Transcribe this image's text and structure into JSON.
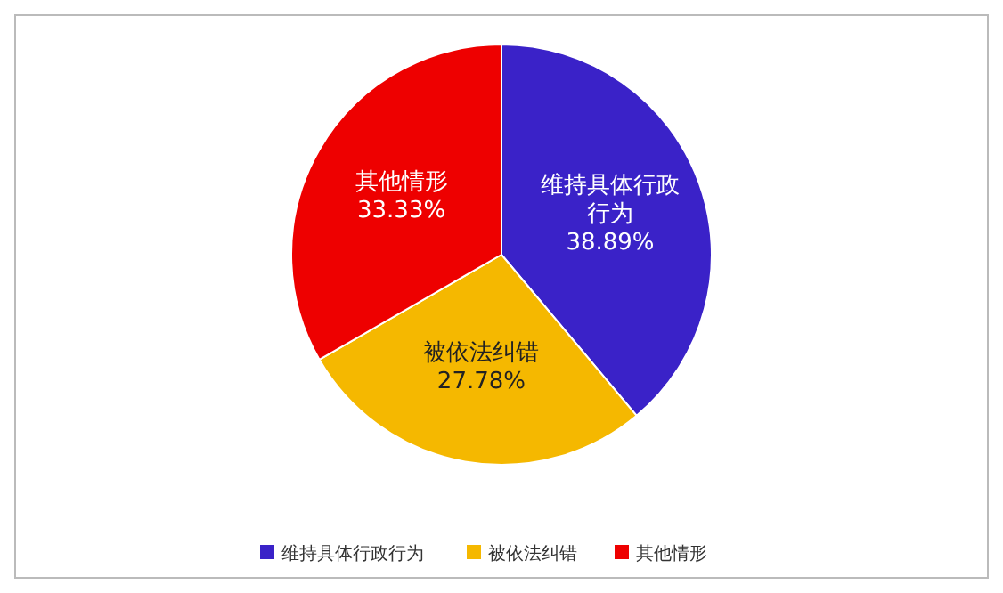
{
  "chart_data": {
    "type": "pie",
    "categories": [
      "维持具体行政行为",
      "被依法纠错",
      "其他情形"
    ],
    "values": [
      38.89,
      27.78,
      33.33
    ],
    "colors": [
      "#3a22c8",
      "#f5b800",
      "#ee0000"
    ],
    "value_labels": [
      "38.89%",
      "27.78%",
      "33.33%"
    ],
    "legend": "bottom"
  }
}
